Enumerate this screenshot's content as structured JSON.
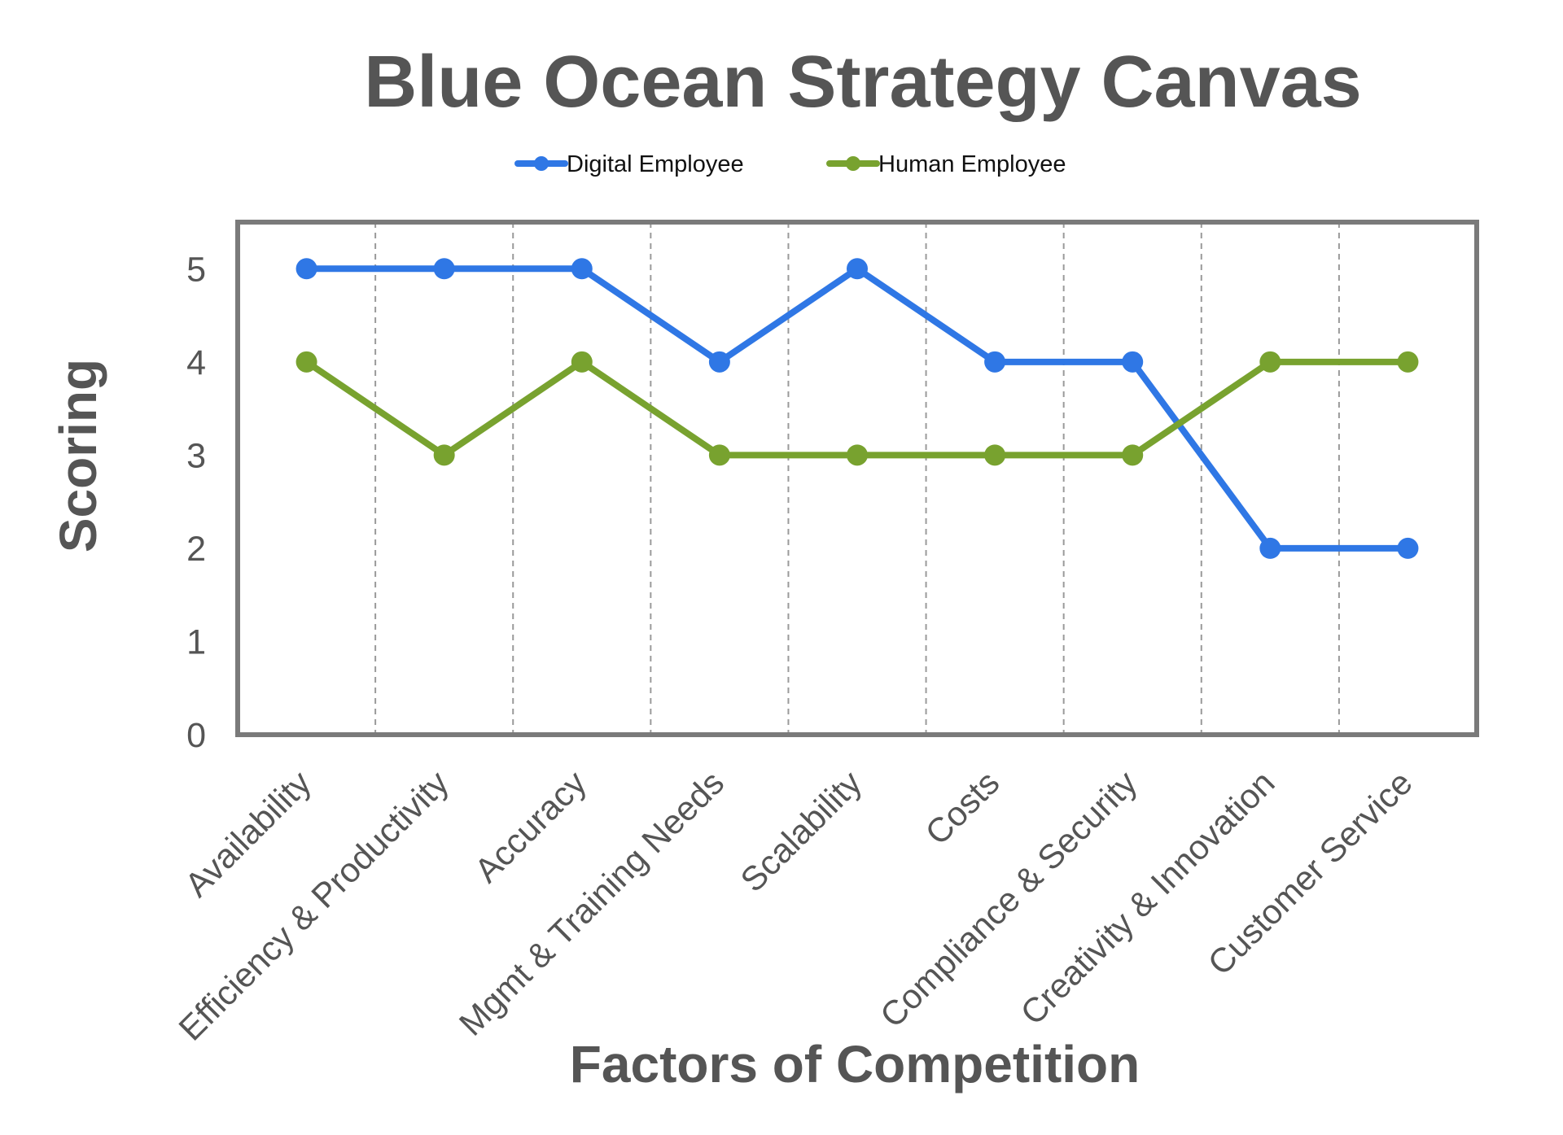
{
  "chart_data": {
    "type": "line",
    "title": "Blue Ocean Strategy Canvas",
    "xlabel": "Factors of Competition",
    "ylabel": "Scoring",
    "categories": [
      "Availability",
      "Efficiency & Productivity",
      "Accuracy",
      "Mgmt & Training Needs",
      "Scalability",
      "Costs",
      "Compliance & Security",
      "Creativity & Innovation",
      "Customer Service"
    ],
    "y_ticks": [
      "0",
      "1",
      "2",
      "3",
      "4",
      "5"
    ],
    "ylim": [
      0,
      5.5
    ],
    "grid": "vertical dashed lines between categories",
    "legend_position": "top-center",
    "series": [
      {
        "name": "Digital Employee",
        "color": "#2f77e5",
        "values": [
          5,
          5,
          5,
          4,
          5,
          4,
          4,
          2,
          2
        ]
      },
      {
        "name": "Human Employee",
        "color": "#78a22f",
        "values": [
          4,
          3,
          4,
          3,
          3,
          3,
          3,
          4,
          4
        ]
      }
    ]
  }
}
